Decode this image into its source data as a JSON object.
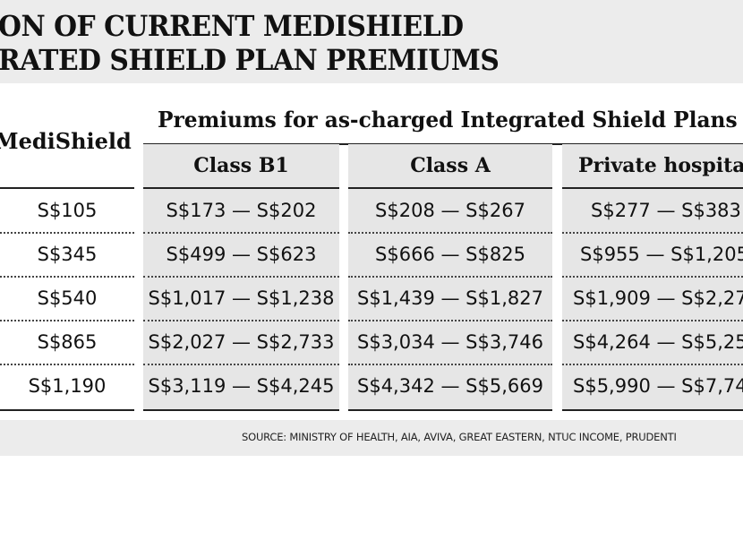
{
  "title": {
    "line1": "ON OF CURRENT MEDISHIELD",
    "line2": "RATED SHIELD PLAN PREMIUMS"
  },
  "table": {
    "medishield_header": "MediShield",
    "group_header": "Premiums for as-charged Integrated Shield Plans",
    "columns": [
      "Class B1",
      "Class A",
      "Private hospital"
    ],
    "rows": [
      {
        "medishield": "S$105",
        "class_b1": "S$173 — S$202",
        "class_a": "S$208 — S$267",
        "private": "S$277 — S$383"
      },
      {
        "medishield": "S$345",
        "class_b1": "S$499 — S$623",
        "class_a": "S$666 — S$825",
        "private": "S$955 — S$1,205"
      },
      {
        "medishield": "S$540",
        "class_b1": "S$1,017 — S$1,238",
        "class_a": "S$1,439 — S$1,827",
        "private": "S$1,909 — S$2,27"
      },
      {
        "medishield": "S$865",
        "class_b1": "S$2,027 — S$2,733",
        "class_a": "S$3,034 — S$3,746",
        "private": "S$4,264 — S$5,25"
      },
      {
        "medishield": "S$1,190",
        "class_b1": "S$3,119 — S$4,245",
        "class_a": "S$4,342 — S$5,669",
        "private": "S$5,990 — S$7,74"
      }
    ]
  },
  "source": "SOURCE: MINISTRY OF HEALTH, AIA, AVIVA, GREAT EASTERN, NTUC INCOME, PRUDENTI"
}
